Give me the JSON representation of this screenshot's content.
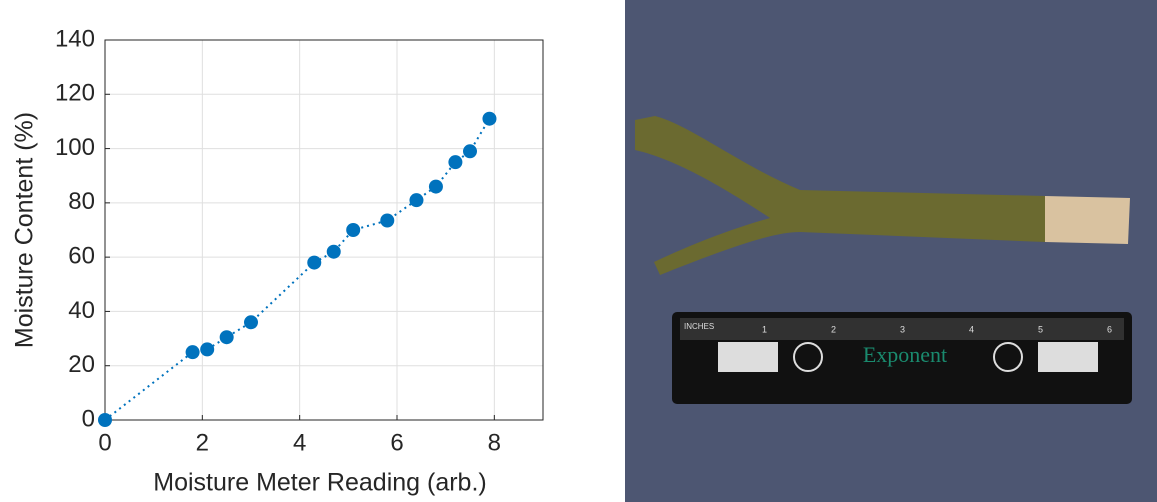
{
  "chart_data": {
    "type": "scatter",
    "x_label": "Moisture Meter Reading (arb.)",
    "y_label": "Moisture Content (%)",
    "x": [
      0,
      1.8,
      2.1,
      2.5,
      3.0,
      4.3,
      4.7,
      5.1,
      5.8,
      6.4,
      6.8,
      7.2,
      7.5,
      7.9
    ],
    "series": [
      {
        "color": "#0072bd",
        "values": [
          0,
          25,
          26,
          30.5,
          36,
          58,
          62,
          70,
          73.5,
          81,
          86,
          95,
          99,
          111
        ]
      }
    ],
    "xlim": [
      0,
      9
    ],
    "xticks": [
      0,
      2,
      4,
      6,
      8
    ],
    "ylim": [
      0,
      140
    ],
    "yticks": [
      0,
      20,
      40,
      60,
      80,
      100,
      120,
      140
    ],
    "grid": true,
    "line_style": "dotted"
  },
  "photo": {
    "ruler_unit": "INCHES",
    "ruler_brand": "Exponent",
    "ruler_numbers": [
      "1",
      "2",
      "3",
      "4",
      "5",
      "6"
    ]
  }
}
